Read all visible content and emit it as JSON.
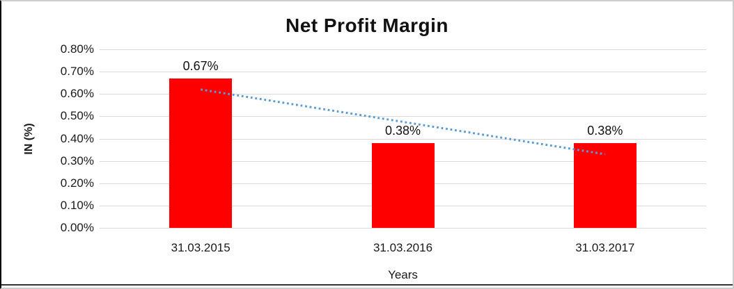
{
  "chart_data": {
    "type": "bar",
    "title": "Net Profit Margin",
    "xlabel": "Years",
    "ylabel": "IN (%)",
    "categories": [
      "31.03.2015",
      "31.03.2016",
      "31.03.2017"
    ],
    "values": [
      0.67,
      0.38,
      0.38
    ],
    "data_labels": [
      "0.67%",
      "0.38%",
      "0.38%"
    ],
    "value_unit": "%",
    "ylim": [
      0,
      0.8
    ],
    "yticks": [
      {
        "value": 0,
        "label": "0.00%"
      },
      {
        "value": 0.1,
        "label": "0.10%"
      },
      {
        "value": 0.2,
        "label": "0.20%"
      },
      {
        "value": 0.3,
        "label": "0.30%"
      },
      {
        "value": 0.4,
        "label": "0.40%"
      },
      {
        "value": 0.5,
        "label": "0.50%"
      },
      {
        "value": 0.6,
        "label": "0.60%"
      },
      {
        "value": 0.7,
        "label": "0.70%"
      },
      {
        "value": 0.8,
        "label": "0.80%"
      }
    ],
    "grid": true,
    "legend_position": "none",
    "colors": {
      "bar": "#FF0000",
      "trendline": "#5B9BD5",
      "gridline": "#D9D9D9",
      "text": "#1A1A1A"
    },
    "trendline": {
      "type": "linear",
      "style": "dotted",
      "start_value": 0.62,
      "end_value": 0.33
    }
  }
}
